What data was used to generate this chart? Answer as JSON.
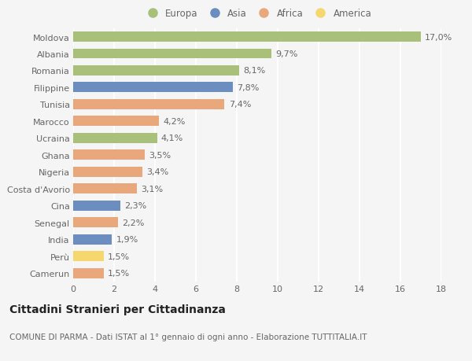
{
  "countries": [
    "Moldova",
    "Albania",
    "Romania",
    "Filippine",
    "Tunisia",
    "Marocco",
    "Ucraina",
    "Ghana",
    "Nigeria",
    "Costa d'Avorio",
    "Cina",
    "Senegal",
    "India",
    "Perù",
    "Camerun"
  ],
  "values": [
    17.0,
    9.7,
    8.1,
    7.8,
    7.4,
    4.2,
    4.1,
    3.5,
    3.4,
    3.1,
    2.3,
    2.2,
    1.9,
    1.5,
    1.5
  ],
  "regions": [
    "Europa",
    "Europa",
    "Europa",
    "Asia",
    "Africa",
    "Africa",
    "Europa",
    "Africa",
    "Africa",
    "Africa",
    "Asia",
    "Africa",
    "Asia",
    "America",
    "Africa"
  ],
  "region_colors": {
    "Europa": "#a8c07a",
    "Asia": "#6b8dbf",
    "Africa": "#e8a87c",
    "America": "#f5d76e"
  },
  "legend_order": [
    "Europa",
    "Asia",
    "Africa",
    "America"
  ],
  "title": "Cittadini Stranieri per Cittadinanza",
  "subtitle": "COMUNE DI PARMA - Dati ISTAT al 1° gennaio di ogni anno - Elaborazione TUTTITALIA.IT",
  "xlabel_vals": [
    0,
    2,
    4,
    6,
    8,
    10,
    12,
    14,
    16,
    18
  ],
  "xlim": [
    0,
    18.5
  ],
  "bar_height": 0.6,
  "background_color": "#f5f5f5",
  "grid_color": "#ffffff",
  "label_fontsize": 8,
  "tick_fontsize": 8,
  "title_fontsize": 10,
  "subtitle_fontsize": 7.5
}
